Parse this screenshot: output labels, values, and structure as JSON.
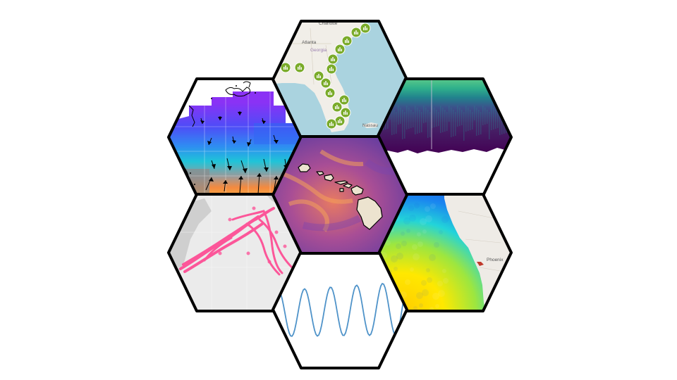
{
  "logo": {
    "tiles": [
      {
        "id": "ocean-current-vector-map",
        "icon": "vector-arrows"
      },
      {
        "id": "station-marker-map",
        "icon": "map-markers",
        "labels": {
          "city_1": "Charlotte",
          "city_2": "Atlanta",
          "state": "Georgia",
          "city_3": "Nassau"
        }
      },
      {
        "id": "depth-time-profile",
        "icon": "depth-profile"
      },
      {
        "id": "hawaii-concentration-map",
        "icon": "islands-heatmap"
      },
      {
        "id": "track-density-map",
        "icon": "trajectory-tracks"
      },
      {
        "id": "sst-heatmap",
        "icon": "temperature-heatmap",
        "labels": {
          "city": "Phoenix"
        }
      },
      {
        "id": "time-series-line",
        "icon": "wave-line"
      }
    ],
    "colors": {
      "border": "#000000",
      "marker_green": "#7aab2a",
      "sea_blue": "#aad3df",
      "track_pink": "#ff3d8b",
      "line_blue": "#4f93c9",
      "viridis_purple": "#440154",
      "viridis_yellow": "#fde725"
    }
  }
}
